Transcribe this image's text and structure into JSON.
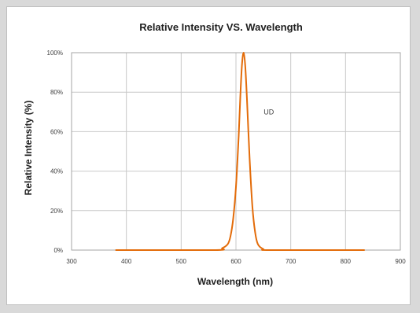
{
  "chart_data": {
    "type": "line",
    "title": "Relative Intensity VS. Wavelength",
    "xlabel": "Wavelength (nm)",
    "ylabel": "Relative Intensity (%)",
    "xlim": [
      300,
      900
    ],
    "ylim": [
      0,
      100
    ],
    "x_ticks": [
      300,
      400,
      500,
      600,
      700,
      800,
      900
    ],
    "x_tick_labels": [
      "300",
      "400",
      "500",
      "600",
      "700",
      "800",
      "900"
    ],
    "y_ticks": [
      0,
      20,
      40,
      60,
      80,
      100
    ],
    "y_tick_labels": [
      "0%",
      "20%",
      "40%",
      "60%",
      "80%",
      "100%"
    ],
    "grid": true,
    "legend": "none",
    "annotation": {
      "text": "UD",
      "x": 660,
      "y": 70
    },
    "series": [
      {
        "color": "#e36c0a",
        "x": [
          380,
          560,
          575,
          585,
          590,
          595,
          600,
          605,
          608,
          611,
          614,
          617,
          620,
          625,
          630,
          635,
          640,
          650,
          665,
          835
        ],
        "y": [
          0,
          0,
          1,
          3,
          7,
          16,
          32,
          58,
          78,
          94,
          100,
          93,
          77,
          46,
          22,
          9,
          3,
          0.5,
          0,
          0
        ]
      }
    ]
  }
}
